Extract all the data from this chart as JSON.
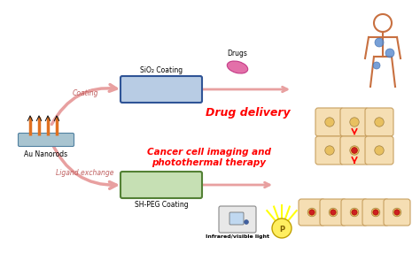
{
  "bg_color": "#ffffff",
  "sio2_label": "SiO₂ Coating",
  "shpeg_label": "SH-PEG Coating",
  "au_label": "Au Nanorods",
  "coating_label": "Coating",
  "ligand_label": "Ligand exchange",
  "drug_label": "Drugs",
  "drug_delivery_label": "Drug delivery",
  "cancer_label": "Cancer cell imaging and\nphotothermal therapy",
  "ir_label": "Infrared/visible light",
  "arrow_color": "#e8a0a0",
  "sio2_fill": "#b8cce4",
  "sio2_edge": "#2f5496",
  "shpeg_fill": "#c6e0b4",
  "shpeg_edge": "#538135",
  "nanorod_base_color": "#a8c4d0",
  "nanorod_rod_color": "#e07020",
  "red_label_color": "#ff0000",
  "human_color": "#c87040",
  "cell_fill": "#f5deb3",
  "cell_edge": "#c8a060",
  "cell_nucleus_color": "#e8c060",
  "cell_red_spot": "#cc2020",
  "drug_color": "#e060a0"
}
